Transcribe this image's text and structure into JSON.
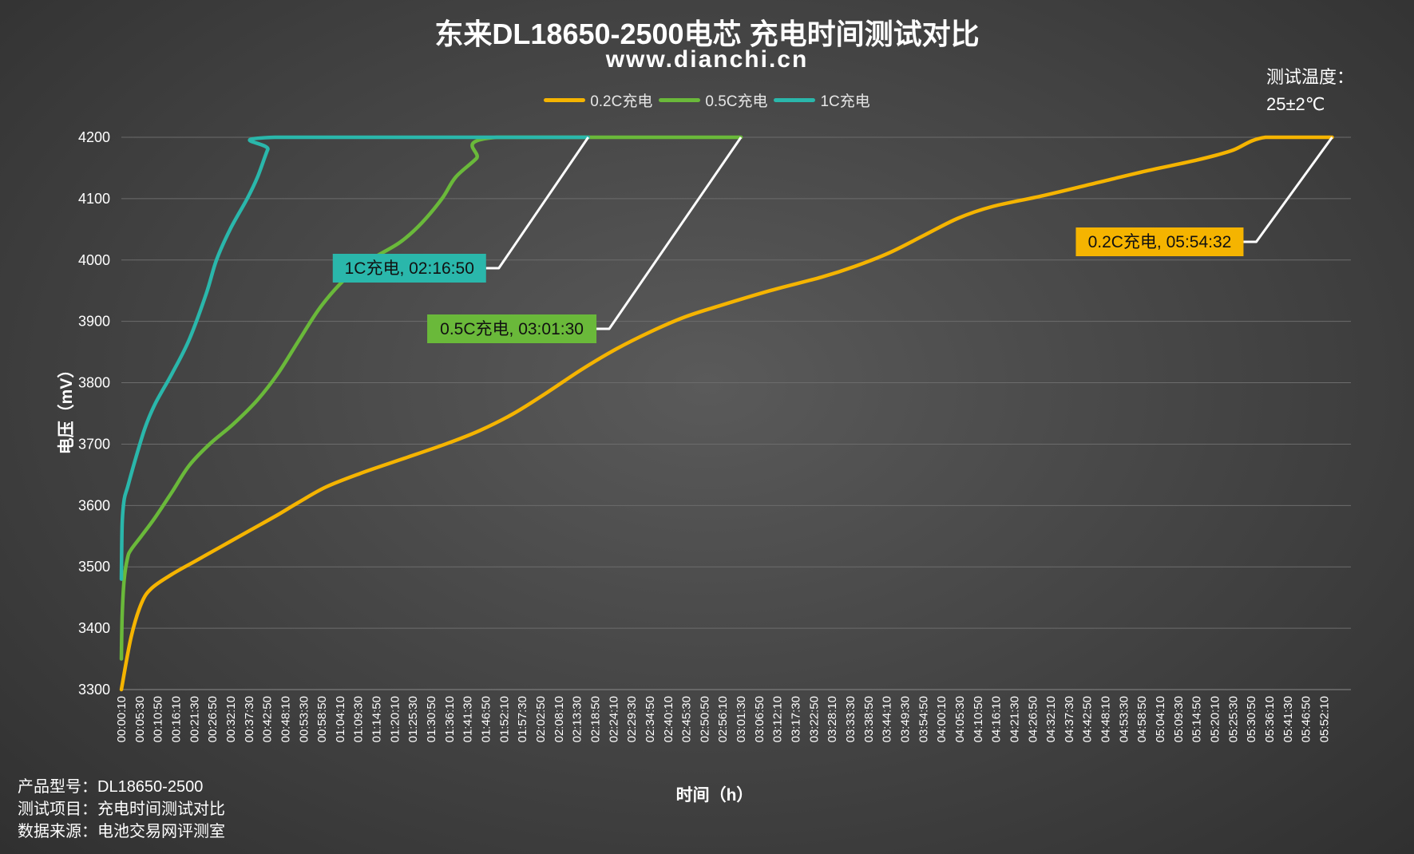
{
  "header": {
    "title": "东来DL18650-2500电芯 充电时间测试对比",
    "subtitle": "www.dianchi.cn",
    "temp_line1": "测试温度：",
    "temp_line2": "25±2℃"
  },
  "footer": {
    "line1": "产品型号：DL18650-2500",
    "line2": "测试项目：充电时间测试对比",
    "line3": "数据来源：电池交易网评测室"
  },
  "chart_data": {
    "type": "line",
    "title": "东来DL18650-2500电芯 充电时间测试对比",
    "subtitle": "www.dianchi.cn",
    "xlabel": "时间（h）",
    "ylabel": "电压（mV）",
    "ylim": [
      3300,
      4200
    ],
    "yticks": [
      3300,
      3400,
      3500,
      3600,
      3700,
      3800,
      3900,
      4000,
      4100,
      4200
    ],
    "xlim_minutes": [
      0.1667,
      360
    ],
    "x_tick_labels": [
      "00:00:10",
      "00:05:30",
      "00:10:50",
      "00:16:10",
      "00:21:30",
      "00:26:50",
      "00:32:10",
      "00:37:30",
      "00:42:50",
      "00:48:10",
      "00:53:30",
      "00:58:50",
      "01:04:10",
      "01:09:30",
      "01:14:50",
      "01:20:10",
      "01:25:30",
      "01:30:50",
      "01:36:10",
      "01:41:30",
      "01:46:50",
      "01:52:10",
      "01:57:30",
      "02:02:50",
      "02:08:10",
      "02:13:30",
      "02:18:50",
      "02:24:10",
      "02:29:30",
      "02:34:50",
      "02:40:10",
      "02:45:30",
      "02:50:50",
      "02:56:10",
      "03:01:30",
      "03:06:50",
      "03:12:10",
      "03:17:30",
      "03:22:50",
      "03:28:10",
      "03:33:30",
      "03:38:50",
      "03:44:10",
      "03:49:30",
      "03:54:50",
      "04:00:10",
      "04:05:30",
      "04:10:50",
      "04:16:10",
      "04:21:30",
      "04:26:50",
      "04:32:10",
      "04:37:30",
      "04:42:50",
      "04:48:10",
      "04:53:30",
      "04:58:50",
      "05:04:10",
      "05:09:30",
      "05:14:50",
      "05:20:10",
      "05:25:30",
      "05:30:50",
      "05:36:10",
      "05:41:30",
      "05:46:50",
      "05:52:10"
    ],
    "grid": true,
    "legend_position": "top",
    "series": [
      {
        "name": "0.2C充电",
        "color": "#f5b400",
        "points": [
          [
            0.17,
            3300
          ],
          [
            3,
            3385
          ],
          [
            6,
            3440
          ],
          [
            9,
            3465
          ],
          [
            15,
            3488
          ],
          [
            22,
            3510
          ],
          [
            30,
            3535
          ],
          [
            38,
            3560
          ],
          [
            46,
            3585
          ],
          [
            52,
            3605
          ],
          [
            60,
            3630
          ],
          [
            70,
            3652
          ],
          [
            82,
            3675
          ],
          [
            95,
            3700
          ],
          [
            105,
            3722
          ],
          [
            115,
            3750
          ],
          [
            125,
            3785
          ],
          [
            135,
            3822
          ],
          [
            145,
            3855
          ],
          [
            155,
            3883
          ],
          [
            165,
            3907
          ],
          [
            175,
            3925
          ],
          [
            190,
            3950
          ],
          [
            205,
            3972
          ],
          [
            215,
            3990
          ],
          [
            225,
            4012
          ],
          [
            235,
            4040
          ],
          [
            245,
            4068
          ],
          [
            255,
            4087
          ],
          [
            270,
            4105
          ],
          [
            285,
            4125
          ],
          [
            300,
            4145
          ],
          [
            315,
            4163
          ],
          [
            325,
            4178
          ],
          [
            335,
            4200
          ],
          [
            354.5,
            4200
          ]
        ],
        "end_label": "0.2C充电, 05:54:32"
      },
      {
        "name": "0.5C充电",
        "color": "#6ab93a",
        "points": [
          [
            0.17,
            3350
          ],
          [
            0.4,
            3420
          ],
          [
            1,
            3480
          ],
          [
            2,
            3515
          ],
          [
            3,
            3528
          ],
          [
            6,
            3550
          ],
          [
            10,
            3580
          ],
          [
            15,
            3622
          ],
          [
            20,
            3665
          ],
          [
            26,
            3700
          ],
          [
            33,
            3733
          ],
          [
            40,
            3772
          ],
          [
            46,
            3815
          ],
          [
            52,
            3868
          ],
          [
            58,
            3920
          ],
          [
            64,
            3960
          ],
          [
            70,
            3990
          ],
          [
            76,
            4010
          ],
          [
            82,
            4030
          ],
          [
            88,
            4060
          ],
          [
            94,
            4100
          ],
          [
            98,
            4135
          ],
          [
            104,
            4165
          ],
          [
            110,
            4200
          ],
          [
            181.5,
            4200
          ]
        ],
        "end_label": "0.5C充电, 03:01:30"
      },
      {
        "name": "1C充电",
        "color": "#2ab7ab",
        "points": [
          [
            0.17,
            3480
          ],
          [
            0.4,
            3570
          ],
          [
            1,
            3610
          ],
          [
            2,
            3630
          ],
          [
            4,
            3670
          ],
          [
            7,
            3725
          ],
          [
            10,
            3765
          ],
          [
            15,
            3815
          ],
          [
            20,
            3870
          ],
          [
            25,
            3945
          ],
          [
            28,
            4000
          ],
          [
            32,
            4050
          ],
          [
            37,
            4100
          ],
          [
            40,
            4135
          ],
          [
            43,
            4180
          ],
          [
            45,
            4200
          ],
          [
            136.8,
            4200
          ]
        ],
        "end_label": "1C充电, 02:16:50"
      }
    ]
  }
}
